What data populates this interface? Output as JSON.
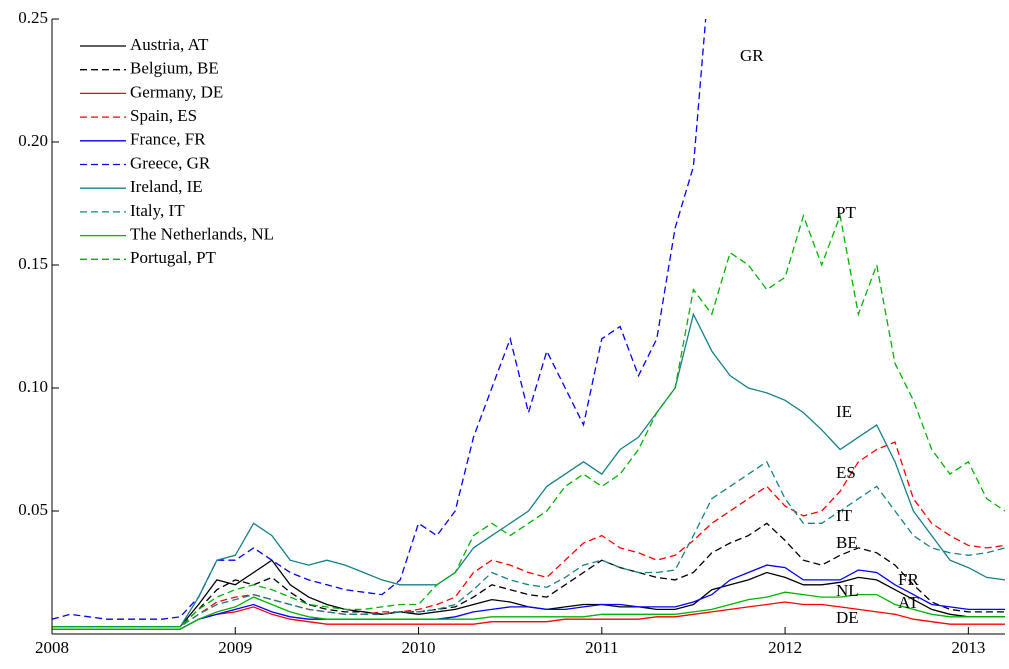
{
  "chart_data": {
    "type": "line",
    "x": [
      2008,
      2008.1,
      2008.2,
      2008.3,
      2008.4,
      2008.5,
      2008.6,
      2008.7,
      2008.8,
      2008.9,
      2009,
      2009.1,
      2009.2,
      2009.3,
      2009.4,
      2009.5,
      2009.6,
      2009.7,
      2009.8,
      2009.9,
      2010,
      2010.1,
      2010.2,
      2010.3,
      2010.4,
      2010.5,
      2010.6,
      2010.7,
      2010.8,
      2010.9,
      2011,
      2011.1,
      2011.2,
      2011.3,
      2011.4,
      2011.5,
      2011.6,
      2011.7,
      2011.8,
      2011.9,
      2012,
      2012.1,
      2012.2,
      2012.3,
      2012.4,
      2012.5,
      2012.6,
      2012.7,
      2012.8,
      2012.9,
      2013,
      2013.1,
      2013.2
    ],
    "xlim": [
      2008,
      2013.2
    ],
    "xticks": [
      2008,
      2009,
      2010,
      2011,
      2012,
      2013
    ],
    "ylim": [
      0,
      0.25
    ],
    "yticks": [
      0.05,
      {
        "value": 0.1,
        "label": "0.10"
      },
      0.15,
      {
        "value": 0.2,
        "label": "0.20"
      },
      0.25
    ],
    "legend": "upper left",
    "series": [
      {
        "name": "Austria, AT",
        "color": "#000000",
        "dash": false,
        "values": [
          0.003,
          0.003,
          0.003,
          0.003,
          0.003,
          0.003,
          0.003,
          0.003,
          0.012,
          0.022,
          0.02,
          0.025,
          0.03,
          0.02,
          0.015,
          0.012,
          0.01,
          0.009,
          0.008,
          0.009,
          0.008,
          0.009,
          0.01,
          0.012,
          0.014,
          0.013,
          0.011,
          0.01,
          0.011,
          0.012,
          0.012,
          0.011,
          0.011,
          0.01,
          0.01,
          0.012,
          0.018,
          0.02,
          0.022,
          0.025,
          0.023,
          0.02,
          0.02,
          0.021,
          0.023,
          0.022,
          0.018,
          0.014,
          0.01,
          0.008,
          0.007,
          0.007,
          0.007
        ]
      },
      {
        "name": "Belgium, BE",
        "color": "#000000",
        "dash": true,
        "values": [
          0.003,
          0.003,
          0.003,
          0.003,
          0.003,
          0.003,
          0.003,
          0.003,
          0.01,
          0.018,
          0.022,
          0.02,
          0.023,
          0.017,
          0.012,
          0.01,
          0.009,
          0.009,
          0.008,
          0.009,
          0.009,
          0.01,
          0.011,
          0.015,
          0.02,
          0.018,
          0.016,
          0.015,
          0.02,
          0.025,
          0.03,
          0.027,
          0.025,
          0.023,
          0.022,
          0.025,
          0.033,
          0.037,
          0.04,
          0.045,
          0.038,
          0.03,
          0.028,
          0.032,
          0.035,
          0.033,
          0.028,
          0.02,
          0.013,
          0.01,
          0.009,
          0.009,
          0.009
        ]
      },
      {
        "name": "Germany, DE",
        "color": "#ff0000",
        "dash": false,
        "values": [
          0.002,
          0.002,
          0.002,
          0.002,
          0.002,
          0.002,
          0.002,
          0.002,
          0.006,
          0.008,
          0.009,
          0.011,
          0.008,
          0.006,
          0.005,
          0.004,
          0.004,
          0.004,
          0.004,
          0.004,
          0.004,
          0.004,
          0.004,
          0.004,
          0.005,
          0.005,
          0.005,
          0.005,
          0.006,
          0.006,
          0.006,
          0.006,
          0.006,
          0.007,
          0.007,
          0.008,
          0.009,
          0.01,
          0.011,
          0.012,
          0.013,
          0.012,
          0.012,
          0.011,
          0.01,
          0.009,
          0.008,
          0.006,
          0.005,
          0.004,
          0.004,
          0.004,
          0.004
        ]
      },
      {
        "name": "Spain, ES",
        "color": "#ff0000",
        "dash": true,
        "values": [
          0.003,
          0.003,
          0.003,
          0.003,
          0.003,
          0.003,
          0.003,
          0.003,
          0.008,
          0.013,
          0.015,
          0.016,
          0.014,
          0.012,
          0.01,
          0.009,
          0.008,
          0.008,
          0.009,
          0.009,
          0.01,
          0.012,
          0.015,
          0.025,
          0.03,
          0.028,
          0.025,
          0.023,
          0.03,
          0.037,
          0.04,
          0.035,
          0.033,
          0.03,
          0.032,
          0.038,
          0.045,
          0.05,
          0.055,
          0.06,
          0.052,
          0.048,
          0.05,
          0.058,
          0.07,
          0.075,
          0.078,
          0.055,
          0.045,
          0.04,
          0.036,
          0.035,
          0.036
        ]
      },
      {
        "name": "France, FR",
        "color": "#0000ff",
        "dash": false,
        "values": [
          0.002,
          0.002,
          0.002,
          0.002,
          0.002,
          0.002,
          0.002,
          0.002,
          0.006,
          0.008,
          0.01,
          0.012,
          0.009,
          0.007,
          0.006,
          0.006,
          0.006,
          0.006,
          0.006,
          0.006,
          0.006,
          0.006,
          0.007,
          0.009,
          0.01,
          0.011,
          0.011,
          0.01,
          0.01,
          0.011,
          0.012,
          0.012,
          0.011,
          0.011,
          0.011,
          0.013,
          0.016,
          0.022,
          0.025,
          0.028,
          0.027,
          0.022,
          0.022,
          0.022,
          0.026,
          0.025,
          0.02,
          0.016,
          0.012,
          0.011,
          0.01,
          0.01,
          0.01
        ]
      },
      {
        "name": "Greece, GR",
        "color": "#0000ff",
        "dash": true,
        "values": [
          0.006,
          0.008,
          0.007,
          0.006,
          0.006,
          0.006,
          0.006,
          0.007,
          0.015,
          0.03,
          0.03,
          0.035,
          0.03,
          0.025,
          0.022,
          0.02,
          0.018,
          0.017,
          0.016,
          0.022,
          0.045,
          0.04,
          0.05,
          0.08,
          0.1,
          0.12,
          0.09,
          0.115,
          0.1,
          0.085,
          0.12,
          0.125,
          0.105,
          0.12,
          0.165,
          0.19,
          0.28,
          0.26,
          null,
          null,
          null,
          null,
          null,
          null,
          null,
          null,
          null,
          null,
          null,
          null,
          null,
          null,
          null
        ]
      },
      {
        "name": "Ireland, IE",
        "color": "#17808a",
        "dash": false,
        "values": [
          0.003,
          0.003,
          0.003,
          0.003,
          0.003,
          0.003,
          0.003,
          0.003,
          0.015,
          0.03,
          0.032,
          0.045,
          0.04,
          0.03,
          0.028,
          0.03,
          0.028,
          0.025,
          0.022,
          0.02,
          0.02,
          0.02,
          0.025,
          0.035,
          0.04,
          0.045,
          0.05,
          0.06,
          0.065,
          0.07,
          0.065,
          0.075,
          0.08,
          0.09,
          0.1,
          0.13,
          0.115,
          0.105,
          0.1,
          0.098,
          0.095,
          0.09,
          0.083,
          0.075,
          0.08,
          0.085,
          0.07,
          0.05,
          0.04,
          0.03,
          0.027,
          0.023,
          0.022
        ]
      },
      {
        "name": "Italy, IT",
        "color": "#17808a",
        "dash": true,
        "values": [
          0.003,
          0.003,
          0.003,
          0.003,
          0.003,
          0.003,
          0.003,
          0.003,
          0.008,
          0.012,
          0.014,
          0.016,
          0.014,
          0.012,
          0.01,
          0.009,
          0.008,
          0.008,
          0.008,
          0.009,
          0.009,
          0.01,
          0.012,
          0.018,
          0.025,
          0.022,
          0.02,
          0.019,
          0.023,
          0.028,
          0.03,
          0.027,
          0.025,
          0.025,
          0.026,
          0.04,
          0.055,
          0.06,
          0.065,
          0.07,
          0.055,
          0.045,
          0.045,
          0.05,
          0.055,
          0.06,
          0.05,
          0.04,
          0.035,
          0.033,
          0.032,
          0.033,
          0.035
        ]
      },
      {
        "name": "The Netherlands, NL",
        "color": "#00b400",
        "dash": false,
        "values": [
          0.002,
          0.002,
          0.002,
          0.002,
          0.002,
          0.002,
          0.002,
          0.002,
          0.006,
          0.009,
          0.011,
          0.015,
          0.012,
          0.009,
          0.007,
          0.006,
          0.006,
          0.006,
          0.006,
          0.006,
          0.006,
          0.006,
          0.006,
          0.006,
          0.007,
          0.007,
          0.007,
          0.007,
          0.007,
          0.007,
          0.008,
          0.008,
          0.008,
          0.008,
          0.008,
          0.009,
          0.01,
          0.012,
          0.014,
          0.015,
          0.017,
          0.016,
          0.015,
          0.015,
          0.016,
          0.016,
          0.012,
          0.01,
          0.008,
          0.007,
          0.007,
          0.007,
          0.007
        ]
      },
      {
        "name": "Portugal, PT",
        "color": "#00b400",
        "dash": true,
        "values": [
          0.003,
          0.003,
          0.003,
          0.003,
          0.003,
          0.003,
          0.003,
          0.003,
          0.01,
          0.015,
          0.018,
          0.02,
          0.018,
          0.015,
          0.012,
          0.011,
          0.01,
          0.01,
          0.011,
          0.012,
          0.012,
          0.02,
          0.025,
          0.04,
          0.045,
          0.04,
          0.045,
          0.05,
          0.06,
          0.065,
          0.06,
          0.065,
          0.075,
          0.09,
          0.1,
          0.14,
          0.13,
          0.155,
          0.15,
          0.14,
          0.145,
          0.17,
          0.15,
          0.17,
          0.13,
          0.15,
          0.11,
          0.095,
          0.075,
          0.065,
          0.07,
          0.055,
          0.05
        ]
      }
    ],
    "annotations": [
      "GR",
      "PT",
      "IE",
      "ES",
      "IT",
      "BE",
      "FR",
      "AT",
      "NL",
      "DE"
    ]
  }
}
